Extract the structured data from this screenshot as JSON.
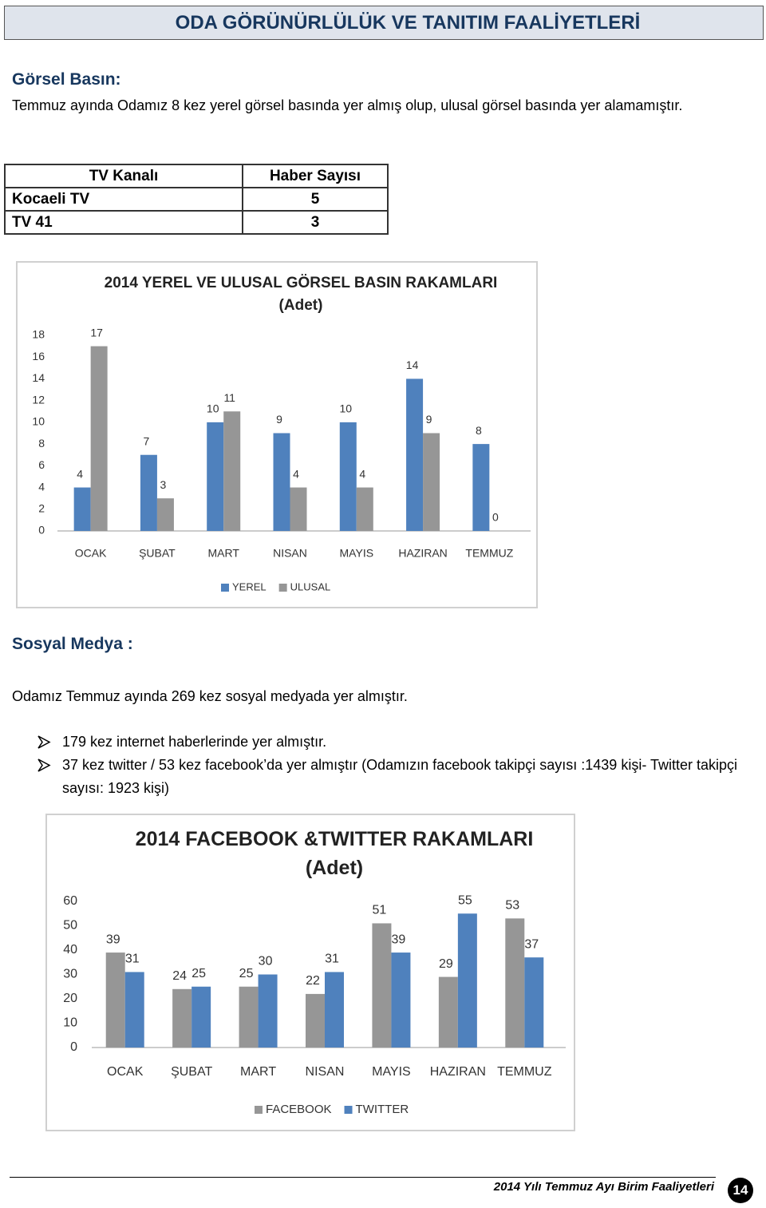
{
  "header": {
    "title": "ODA GÖRÜNÜRLÜLÜK VE TANITIM FAALİYETLERİ"
  },
  "section1": {
    "heading": "Görsel Basın:",
    "text": "Temmuz ayında Odamız 8 kez yerel görsel basında yer almış olup, ulusal görsel basında yer alamamıştır."
  },
  "table": {
    "columns": [
      "TV Kanalı",
      "Haber Sayısı"
    ],
    "rows": [
      [
        "Kocaeli TV",
        5
      ],
      [
        "TV 41",
        3
      ]
    ]
  },
  "chart_data": [
    {
      "type": "bar",
      "title": "2014 YEREL VE ULUSAL GÖRSEL BASIN RAKAMLARI (Adet)",
      "categories": [
        "OCAK",
        "ŞUBAT",
        "MART",
        "NISAN",
        "MAYIS",
        "HAZIRAN",
        "TEMMUZ"
      ],
      "series": [
        {
          "name": "YEREL",
          "color": "#4f81bd",
          "values": [
            4,
            7,
            10,
            9,
            10,
            14,
            8
          ]
        },
        {
          "name": "ULUSAL",
          "color": "#969696",
          "values": [
            17,
            3,
            11,
            4,
            4,
            9,
            0
          ]
        }
      ],
      "ylim": [
        0,
        18
      ],
      "yticks": [
        0,
        2,
        4,
        6,
        8,
        10,
        12,
        14,
        16,
        18
      ],
      "grid": false,
      "legend": "bottom"
    },
    {
      "type": "bar",
      "title": "2014 FACEBOOK &TWITTER  RAKAMLARI (Adet)",
      "categories": [
        "OCAK",
        "ŞUBAT",
        "MART",
        "NISAN",
        "MAYIS",
        "HAZIRAN",
        "TEMMUZ"
      ],
      "series": [
        {
          "name": "FACEBOOK",
          "color": "#969696",
          "values": [
            39,
            24,
            25,
            22,
            51,
            29,
            53
          ]
        },
        {
          "name": "TWITTER",
          "color": "#4f81bd",
          "values": [
            31,
            25,
            30,
            31,
            39,
            55,
            37
          ]
        }
      ],
      "ylim": [
        0,
        60
      ],
      "yticks": [
        0,
        10,
        20,
        30,
        40,
        50,
        60
      ],
      "grid": false,
      "legend": "bottom"
    }
  ],
  "section2": {
    "heading": "Sosyal Medya :",
    "text": "Odamız Temmuz ayında 269 kez sosyal medyada yer almıştır.",
    "bullets": [
      "179 kez internet haberlerinde yer almıştır.",
      "37 kez twitter / 53 kez facebook’da  yer almıştır (Odamızın facebook takipçi sayısı :1439 kişi- Twitter takipçi sayısı: 1923 kişi)"
    ]
  },
  "footer": {
    "text": "2014 Yılı Temmuz  Ayı Birim Faaliyetleri",
    "page": "14"
  }
}
